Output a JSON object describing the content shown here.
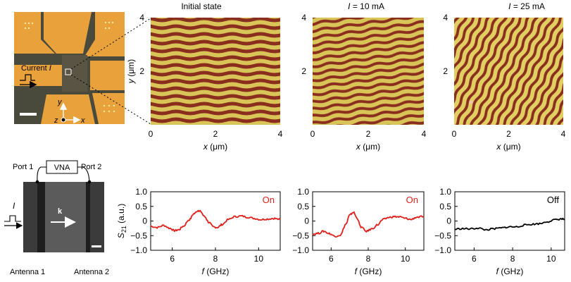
{
  "figure": {
    "microscope": {
      "current_label": "Current ",
      "current_symbol": "I",
      "axis_y": "y",
      "axis_z": "z",
      "axis_x": "x"
    },
    "mfm_panels": [
      {
        "title": "Initial state",
        "title_prefix": "",
        "title_value": ""
      },
      {
        "title": "",
        "title_prefix": "I",
        "title_value": " = 10 mA"
      },
      {
        "title": "",
        "title_prefix": "I",
        "title_value": " = 25 mA"
      }
    ],
    "mfm_axes": {
      "x_ticks": [
        "0",
        "2",
        "4"
      ],
      "y_ticks": [
        "2",
        "4"
      ],
      "x_label_var": "x",
      "x_label_unit": " (μm)",
      "y_label_var": "y",
      "y_label_unit": " (μm)"
    },
    "device": {
      "port1": "Port 1",
      "port2": "Port 2",
      "vna": "VNA",
      "current_symbol": "I",
      "k_label": "k",
      "antenna1": "Antenna 1",
      "antenna2": "Antenna 2"
    },
    "colors": {
      "stripe_dark": "#8a2e1e",
      "stripe_light": "#d9c458",
      "pad_orange": "#e9a23b",
      "substrate": "#4a4a3c",
      "on_red": "#e0201b",
      "off_black": "#000000"
    }
  },
  "chart_data": [
    {
      "type": "line",
      "panel": "S21 spectrum 1",
      "annotation": "On",
      "series_color": "#e0201b",
      "xlabel_var": "f",
      "xlabel_unit": " (GHz)",
      "ylabel_var": "S",
      "ylabel_sub": "21",
      "ylabel_unit": " (a.u.)",
      "xlim": [
        5.0,
        11.0
      ],
      "ylim": [
        -1.0,
        1.0
      ],
      "x_ticks": [
        6,
        8,
        10
      ],
      "y_ticks": [
        -1.0,
        -0.5,
        0,
        0.5,
        1.0
      ],
      "y_tick_labels": [
        "−1.0",
        "−0.5",
        "0",
        "0.5",
        "1.0"
      ],
      "x": [
        5.0,
        5.3,
        5.6,
        5.9,
        6.1,
        6.3,
        6.5,
        6.8,
        7.0,
        7.2,
        7.3,
        7.5,
        7.7,
        7.9,
        8.1,
        8.3,
        8.6,
        8.9,
        9.2,
        9.5,
        9.8,
        10.1,
        10.4,
        10.7,
        11.0
      ],
      "y": [
        -0.18,
        -0.22,
        -0.15,
        -0.25,
        -0.33,
        -0.3,
        -0.18,
        0.05,
        0.25,
        0.36,
        0.33,
        0.15,
        -0.05,
        -0.2,
        -0.22,
        -0.12,
        0.05,
        0.15,
        0.17,
        0.13,
        0.09,
        0.05,
        0.07,
        0.09,
        0.05
      ]
    },
    {
      "type": "line",
      "panel": "S21 spectrum 2",
      "annotation": "On",
      "series_color": "#e0201b",
      "xlabel_var": "f",
      "xlabel_unit": " (GHz)",
      "xlim": [
        5.0,
        11.0
      ],
      "ylim": [
        -1.0,
        1.0
      ],
      "x_ticks": [
        6,
        8,
        10
      ],
      "y_ticks": [
        -1.0,
        -0.5,
        0,
        0.5,
        1.0
      ],
      "y_tick_labels": [
        "−1.0",
        "−0.5",
        "0",
        "0.5",
        "1.0"
      ],
      "x": [
        5.0,
        5.3,
        5.6,
        5.9,
        6.2,
        6.5,
        6.8,
        7.0,
        7.2,
        7.4,
        7.6,
        7.9,
        8.2,
        8.5,
        8.8,
        9.1,
        9.4,
        9.7,
        10.0,
        10.3,
        10.6,
        11.0
      ],
      "y": [
        -0.45,
        -0.42,
        -0.35,
        -0.43,
        -0.52,
        -0.48,
        -0.1,
        0.2,
        0.3,
        0.1,
        -0.2,
        -0.35,
        -0.27,
        -0.13,
        0.05,
        0.12,
        0.15,
        0.14,
        0.09,
        0.05,
        0.13,
        0.15
      ]
    },
    {
      "type": "line",
      "panel": "S21 spectrum 3",
      "annotation": "Off",
      "series_color": "#000000",
      "xlabel_var": "f",
      "xlabel_unit": " (GHz)",
      "xlim": [
        5.0,
        10.7
      ],
      "ylim": [
        -1.0,
        1.0
      ],
      "x_ticks": [
        6,
        8,
        10
      ],
      "y_ticks": [
        -1.0,
        -0.5,
        0,
        0.5,
        1.0
      ],
      "y_tick_labels": [
        "−1.0",
        "−0.5",
        "0",
        "0.5",
        "1.0"
      ],
      "x": [
        5.0,
        5.4,
        5.8,
        6.2,
        6.6,
        7.0,
        7.4,
        7.8,
        8.2,
        8.6,
        9.0,
        9.4,
        9.8,
        10.2,
        10.5,
        10.7
      ],
      "y": [
        -0.28,
        -0.26,
        -0.27,
        -0.24,
        -0.3,
        -0.27,
        -0.24,
        -0.2,
        -0.2,
        -0.14,
        -0.11,
        -0.09,
        -0.02,
        0.04,
        0.07,
        0.06
      ]
    }
  ]
}
